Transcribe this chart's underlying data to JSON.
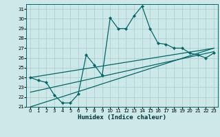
{
  "title": "",
  "xlabel": "Humidex (Indice chaleur)",
  "ylabel": "",
  "bg_color": "#cce8e8",
  "grid_color": "#aacccc",
  "line_color": "#006666",
  "xlim": [
    -0.5,
    23.5
  ],
  "ylim": [
    21,
    31.5
  ],
  "xticks": [
    0,
    1,
    2,
    3,
    4,
    5,
    6,
    7,
    8,
    9,
    10,
    11,
    12,
    13,
    14,
    15,
    16,
    17,
    18,
    19,
    20,
    21,
    22,
    23
  ],
  "yticks": [
    21,
    22,
    23,
    24,
    25,
    26,
    27,
    28,
    29,
    30,
    31
  ],
  "main_y": [
    24.0,
    23.7,
    23.5,
    22.2,
    21.4,
    21.4,
    22.3,
    26.3,
    25.3,
    24.2,
    30.1,
    29.0,
    29.0,
    30.3,
    31.3,
    29.0,
    27.5,
    27.4,
    27.0,
    27.0,
    26.5,
    26.3,
    26.0,
    26.5
  ],
  "line1_y": [
    21.0,
    21.26,
    21.52,
    21.78,
    22.04,
    22.3,
    22.56,
    22.82,
    23.08,
    23.35,
    23.61,
    23.87,
    24.13,
    24.39,
    24.65,
    24.91,
    25.17,
    25.43,
    25.7,
    25.96,
    26.22,
    26.48,
    26.74,
    27.0
  ],
  "line2_y": [
    22.5,
    22.68,
    22.86,
    23.04,
    23.22,
    23.4,
    23.58,
    23.76,
    23.94,
    24.12,
    24.3,
    24.48,
    24.66,
    24.84,
    25.02,
    25.2,
    25.38,
    25.56,
    25.74,
    25.92,
    26.1,
    26.28,
    26.46,
    26.64
  ],
  "line3_y": [
    24.0,
    24.13,
    24.26,
    24.39,
    24.52,
    24.65,
    24.78,
    24.91,
    25.04,
    25.17,
    25.3,
    25.43,
    25.56,
    25.69,
    25.82,
    25.95,
    26.08,
    26.21,
    26.34,
    26.47,
    26.6,
    26.73,
    26.86,
    26.99
  ],
  "xlabel_fontsize": 6.5,
  "tick_fontsize": 5.0,
  "linewidth": 0.9,
  "marker_size": 2.2
}
